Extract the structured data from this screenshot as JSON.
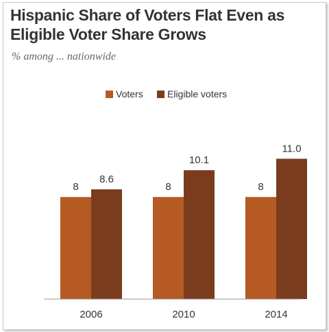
{
  "title": "Hispanic Share of Voters Flat Even as Eligible Voter Share Grows",
  "subtitle": "% among ... nationwide",
  "colors": {
    "voters": "#b55a22",
    "eligible": "#7b3c1e",
    "axis": "#999999"
  },
  "chart_data": {
    "type": "bar",
    "categories": [
      "2006",
      "2010",
      "2014"
    ],
    "series": [
      {
        "name": "Voters",
        "values": [
          8,
          8,
          8
        ],
        "labels": [
          "8",
          "8",
          "8"
        ]
      },
      {
        "name": "Eligible voters",
        "values": [
          8.6,
          10.1,
          11.0
        ],
        "labels": [
          "8.6",
          "10.1",
          "11.0"
        ]
      }
    ],
    "ylim": [
      0,
      14
    ],
    "legend": "top-center",
    "grid": false
  }
}
